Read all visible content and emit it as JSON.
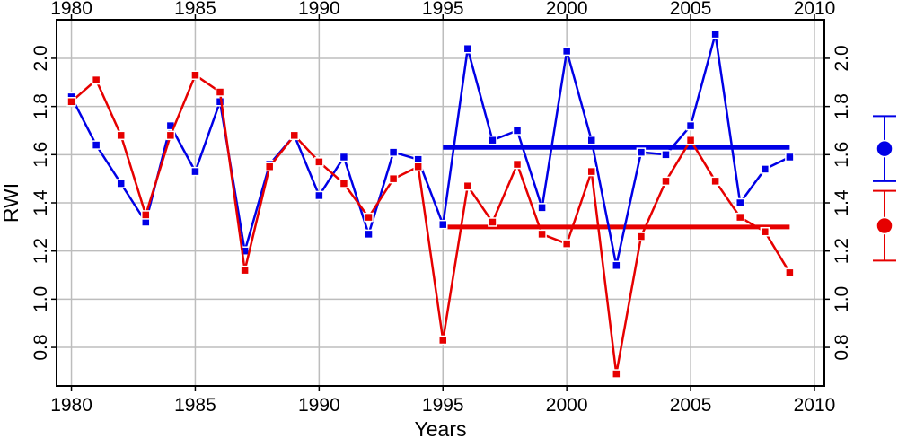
{
  "chart_data": {
    "type": "line",
    "xlabel": "Years",
    "ylabel": "RWI",
    "xlim": [
      1979.4,
      2010.4
    ],
    "ylim": [
      0.64,
      2.16
    ],
    "xticks": [
      1980,
      1985,
      1990,
      1995,
      2000,
      2005,
      2010
    ],
    "yticks": [
      0.8,
      1.0,
      1.2,
      1.4,
      1.6,
      1.8,
      2.0
    ],
    "grid": true,
    "x": [
      1980,
      1981,
      1982,
      1983,
      1984,
      1985,
      1986,
      1987,
      1988,
      1989,
      1990,
      1991,
      1992,
      1993,
      1994,
      1995,
      1996,
      1997,
      1998,
      1999,
      2000,
      2001,
      2002,
      2003,
      2004,
      2005,
      2006,
      2007,
      2008,
      2009
    ],
    "series": [
      {
        "color": "#0000e6",
        "values": [
          1.84,
          1.64,
          1.48,
          1.32,
          1.72,
          1.53,
          1.82,
          1.2,
          1.56,
          1.68,
          1.43,
          1.59,
          1.27,
          1.61,
          1.58,
          1.31,
          2.04,
          1.66,
          1.7,
          1.38,
          2.03,
          1.66,
          1.14,
          1.61,
          1.6,
          1.72,
          2.1,
          1.4,
          1.54,
          1.59
        ],
        "mean_line": {
          "value": 1.63,
          "x_start": 1995,
          "x_end": 2009
        }
      },
      {
        "color": "#e60000",
        "values": [
          1.82,
          1.91,
          1.68,
          1.35,
          1.68,
          1.93,
          1.86,
          1.12,
          1.55,
          1.68,
          1.57,
          1.48,
          1.34,
          1.5,
          1.55,
          0.83,
          1.47,
          1.32,
          1.56,
          1.27,
          1.23,
          1.53,
          0.69,
          1.26,
          1.49,
          1.66,
          1.49,
          1.34,
          1.28,
          1.11
        ],
        "mean_line": {
          "value": 1.3,
          "x_start": 1995,
          "x_end": 2009
        }
      }
    ],
    "side_markers": [
      {
        "color": "#0000e6",
        "mean": 1.625,
        "low": 1.49,
        "high": 1.76
      },
      {
        "color": "#e60000",
        "mean": 1.305,
        "low": 1.16,
        "high": 1.45
      }
    ]
  }
}
